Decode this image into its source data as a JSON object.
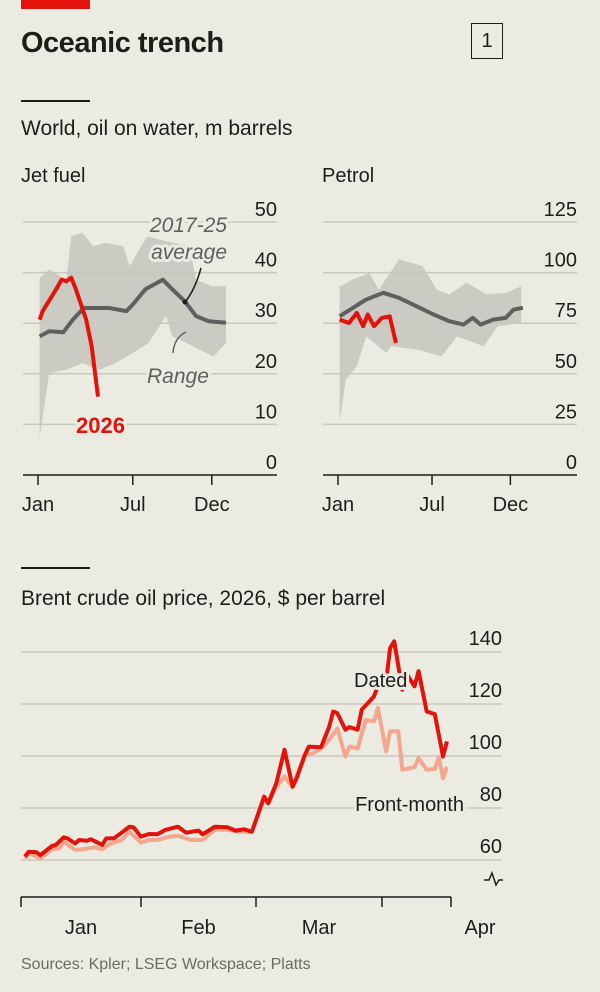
{
  "header": {
    "title": "Oceanic trench",
    "chart_number": "1"
  },
  "colors": {
    "accent": "#e3120b",
    "average": "#5f5f5f",
    "range": "#c5c4bd",
    "front_month": "#f5a68e",
    "grid": "#c9c8bf",
    "background": "#ecebe2"
  },
  "section1": {
    "subtitle": "World, oil on water, m barrels"
  },
  "section2": {
    "subtitle": "Brent crude oil price, 2026, $ per barrel"
  },
  "sources": "Sources: Kpler; LSEG Workspace; Platts",
  "chart_data": [
    {
      "type": "area",
      "title": "Jet fuel",
      "ylim": [
        0,
        50
      ],
      "yticks": [
        "0",
        "10",
        "20",
        "30",
        "40",
        "50"
      ],
      "xticks": [
        {
          "label": "Jan",
          "month": 1
        },
        {
          "label": "Jul",
          "month": 7
        },
        {
          "label": "Dec",
          "month": 12
        }
      ],
      "grid": true,
      "annotations": {
        "average": [
          "2017-25",
          "average"
        ],
        "range": "Range",
        "current": "2026"
      },
      "range": {
        "upper": [
          [
            1.1,
            39
          ],
          [
            1.7,
            40.6
          ],
          [
            2.8,
            38.6
          ],
          [
            3.1,
            47.2
          ],
          [
            3.8,
            47.9
          ],
          [
            4.5,
            45.2
          ],
          [
            5.3,
            45.9
          ],
          [
            6.4,
            45.2
          ],
          [
            6.8,
            41.3
          ],
          [
            7.9,
            47.2
          ],
          [
            9.1,
            46.2
          ],
          [
            10.6,
            45.2
          ],
          [
            11,
            38.6
          ],
          [
            12,
            37.3
          ],
          [
            12.9,
            37.3
          ]
        ],
        "lower": [
          [
            1.1,
            7.3
          ],
          [
            1.7,
            20.1
          ],
          [
            2.8,
            20.8
          ],
          [
            3.8,
            22.1
          ],
          [
            4.9,
            20.8
          ],
          [
            5.9,
            22.1
          ],
          [
            7,
            24.1
          ],
          [
            8,
            26.1
          ],
          [
            9.1,
            31.4
          ],
          [
            9.5,
            27.4
          ],
          [
            10.4,
            26.1
          ],
          [
            11.2,
            24.8
          ],
          [
            12.1,
            23.4
          ],
          [
            12.9,
            26.1
          ]
        ]
      },
      "series": [
        {
          "name": "2017-25 average",
          "values": [
            [
              1.1,
              27.4
            ],
            [
              1.7,
              28.4
            ],
            [
              2.6,
              28.2
            ],
            [
              3.2,
              30.7
            ],
            [
              3.9,
              33
            ],
            [
              4.9,
              33
            ],
            [
              5.5,
              33
            ],
            [
              6.6,
              32.4
            ],
            [
              7,
              33.7
            ],
            [
              7.8,
              36.7
            ],
            [
              8.9,
              38.6
            ],
            [
              9.5,
              36.7
            ],
            [
              10.3,
              34.3
            ],
            [
              11,
              31.4
            ],
            [
              11.8,
              30.4
            ],
            [
              12.9,
              30.1
            ]
          ]
        },
        {
          "name": "2026",
          "values": [
            [
              1.1,
              30.7
            ],
            [
              1.3,
              32.4
            ],
            [
              1.95,
              35.7
            ],
            [
              2.5,
              38.6
            ],
            [
              2.8,
              38.3
            ],
            [
              3.1,
              39
            ],
            [
              3.4,
              36.7
            ],
            [
              4.05,
              30.7
            ],
            [
              4.4,
              25.4
            ],
            [
              4.8,
              15.5
            ]
          ]
        }
      ]
    },
    {
      "type": "area",
      "title": "Petrol",
      "ylim": [
        0,
        125
      ],
      "yticks": [
        "0",
        "25",
        "50",
        "75",
        "100",
        "125"
      ],
      "xticks": [
        {
          "label": "Jan",
          "month": 1
        },
        {
          "label": "Jul",
          "month": 7
        },
        {
          "label": "Dec",
          "month": 12
        }
      ],
      "grid": true,
      "range": {
        "upper": [
          [
            1.1,
            93.3
          ],
          [
            1.96,
            96.6
          ],
          [
            3,
            99.9
          ],
          [
            3.6,
            91.6
          ],
          [
            4.9,
            106.5
          ],
          [
            6.4,
            103.2
          ],
          [
            7.3,
            91.6
          ],
          [
            8.1,
            89.2
          ],
          [
            9.2,
            95
          ],
          [
            10.5,
            89.2
          ],
          [
            11.7,
            90
          ],
          [
            12.7,
            93.3
          ]
        ],
        "lower": [
          [
            1.1,
            26.4
          ],
          [
            1.5,
            47.1
          ],
          [
            2.2,
            53.7
          ],
          [
            2.8,
            68.5
          ],
          [
            4.1,
            60.3
          ],
          [
            4.4,
            63.6
          ],
          [
            6.1,
            61.9
          ],
          [
            7.6,
            58.6
          ],
          [
            8.6,
            68.5
          ],
          [
            10.3,
            63.6
          ],
          [
            11.2,
            73.5
          ],
          [
            12.7,
            75.1
          ]
        ]
      },
      "series": [
        {
          "name": "2017-25 average",
          "values": [
            [
              1.1,
              78.4
            ],
            [
              1.96,
              82.6
            ],
            [
              2.8,
              86.7
            ],
            [
              3.9,
              90
            ],
            [
              4.9,
              87.5
            ],
            [
              6,
              83.4
            ],
            [
              7.1,
              79.3
            ],
            [
              8.1,
              76
            ],
            [
              9,
              74.3
            ],
            [
              9.6,
              77.6
            ],
            [
              10.1,
              74.3
            ],
            [
              10.9,
              76.8
            ],
            [
              11.7,
              77.6
            ],
            [
              12.2,
              81.7
            ],
            [
              12.8,
              82.6
            ]
          ]
        },
        {
          "name": "2026",
          "values": [
            [
              1.1,
              76.8
            ],
            [
              1.7,
              75.1
            ],
            [
              2.2,
              80.1
            ],
            [
              2.6,
              73.5
            ],
            [
              2.9,
              79.3
            ],
            [
              3.3,
              73.5
            ],
            [
              3.8,
              77.6
            ],
            [
              4.3,
              78.4
            ],
            [
              4.7,
              65.2
            ]
          ]
        }
      ]
    },
    {
      "type": "line",
      "title": "Brent crude oil price, 2026, $ per barrel",
      "ylim": [
        50,
        145
      ],
      "yticks": [
        "60",
        "80",
        "100",
        "120",
        "140"
      ],
      "xticks": [
        "Jan",
        "Feb",
        "Mar",
        "Apr"
      ],
      "xlim": [
        "2026-01-01",
        "2026-04-18"
      ],
      "grid": true,
      "axis_break": true,
      "series": [
        {
          "name": "Front-month",
          "values": [
            [
              "2026-01-02",
              60.6
            ],
            [
              "2026-01-03",
              62.6
            ],
            [
              "2026-01-06",
              60.6
            ],
            [
              "2026-01-09",
              64.1
            ],
            [
              "2026-01-11",
              64.5
            ],
            [
              "2026-01-12",
              67.1
            ],
            [
              "2026-01-15",
              63.9
            ],
            [
              "2026-01-17",
              64.1
            ],
            [
              "2026-01-20",
              64.9
            ],
            [
              "2026-01-22",
              64.1
            ],
            [
              "2026-01-24",
              66.2
            ],
            [
              "2026-01-27",
              67.7
            ],
            [
              "2026-01-29",
              70.9
            ],
            [
              "2026-02-01",
              66.7
            ],
            [
              "2026-02-03",
              67.7
            ],
            [
              "2026-02-05",
              67.7
            ],
            [
              "2026-02-08",
              69
            ],
            [
              "2026-02-10",
              69.3
            ],
            [
              "2026-02-13",
              67.7
            ],
            [
              "2026-02-15",
              67.7
            ],
            [
              "2026-02-16",
              67.7
            ],
            [
              "2026-02-19",
              71.6
            ],
            [
              "2026-02-22",
              71.6
            ],
            [
              "2026-02-25",
              70.9
            ],
            [
              "2026-02-28",
              70.9
            ],
            [
              "2026-03-03",
              83.7
            ],
            [
              "2026-03-04",
              81.8
            ],
            [
              "2026-03-06",
              88.2
            ],
            [
              "2026-03-08",
              92
            ],
            [
              "2026-03-10",
              88.2
            ],
            [
              "2026-03-13",
              100.4
            ],
            [
              "2026-03-15",
              101
            ],
            [
              "2026-03-17",
              102.9
            ],
            [
              "2026-03-19",
              106.2
            ],
            [
              "2026-03-21",
              110.6
            ],
            [
              "2026-03-23",
              99.8
            ],
            [
              "2026-03-24",
              103.6
            ],
            [
              "2026-03-26",
              102.9
            ],
            [
              "2026-03-28",
              113.9
            ],
            [
              "2026-03-30",
              113.3
            ],
            [
              "2026-03-31",
              118.5
            ],
            [
              "2026-04-02",
              101.8
            ],
            [
              "2026-04-03",
              109.5
            ],
            [
              "2026-04-05",
              109.5
            ],
            [
              "2026-04-06",
              94.7
            ],
            [
              "2026-04-09",
              95.7
            ],
            [
              "2026-04-10",
              99.2
            ],
            [
              "2026-04-12",
              94.7
            ],
            [
              "2026-04-14",
              95
            ],
            [
              "2026-04-15",
              99.5
            ],
            [
              "2026-04-16",
              91.4
            ],
            [
              "2026-04-17",
              95.9
            ]
          ]
        },
        {
          "name": "Dated",
          "values": [
            [
              "2026-01-02",
              61.3
            ],
            [
              "2026-01-03",
              63.2
            ],
            [
              "2026-01-05",
              63
            ],
            [
              "2026-01-06",
              61.9
            ],
            [
              "2026-01-09",
              65.4
            ],
            [
              "2026-01-10",
              65.8
            ],
            [
              "2026-01-12",
              68.7
            ],
            [
              "2026-01-13",
              68.3
            ],
            [
              "2026-01-15",
              66.4
            ],
            [
              "2026-01-16",
              67.7
            ],
            [
              "2026-01-18",
              67.4
            ],
            [
              "2026-01-19",
              68
            ],
            [
              "2026-01-22",
              65.8
            ],
            [
              "2026-01-23",
              68.3
            ],
            [
              "2026-01-25",
              68.3
            ],
            [
              "2026-01-27",
              70.5
            ],
            [
              "2026-01-29",
              72.8
            ],
            [
              "2026-01-30",
              72.6
            ],
            [
              "2026-02-01",
              69
            ],
            [
              "2026-02-03",
              70
            ],
            [
              "2026-02-05",
              69.9
            ],
            [
              "2026-02-07",
              71.6
            ],
            [
              "2026-02-10",
              72.8
            ],
            [
              "2026-02-12",
              70.5
            ],
            [
              "2026-02-15",
              71.3
            ],
            [
              "2026-02-16",
              69.9
            ],
            [
              "2026-02-19",
              72.8
            ],
            [
              "2026-02-22",
              72.6
            ],
            [
              "2026-02-24",
              71.3
            ],
            [
              "2026-02-26",
              71.8
            ],
            [
              "2026-02-28",
              70.9
            ],
            [
              "2026-03-03",
              84.4
            ],
            [
              "2026-03-04",
              81.8
            ],
            [
              "2026-03-06",
              89.5
            ],
            [
              "2026-03-08",
              102.4
            ],
            [
              "2026-03-10",
              88.2
            ],
            [
              "2026-03-11",
              91.4
            ],
            [
              "2026-03-13",
              100.4
            ],
            [
              "2026-03-14",
              103.6
            ],
            [
              "2026-03-17",
              103.4
            ],
            [
              "2026-03-19",
              111.3
            ],
            [
              "2026-03-20",
              117.1
            ],
            [
              "2026-03-21",
              116.5
            ],
            [
              "2026-03-23",
              110.1
            ],
            [
              "2026-03-24",
              111.1
            ],
            [
              "2026-03-26",
              110.1
            ],
            [
              "2026-03-27",
              117.8
            ],
            [
              "2026-03-30",
              122.9
            ],
            [
              "2026-03-31",
              127
            ],
            [
              "2026-04-02",
              128.7
            ],
            [
              "2026-04-03",
              141.5
            ],
            [
              "2026-04-04",
              144.1
            ],
            [
              "2026-04-06",
              125.5
            ],
            [
              "2026-04-07",
              131.7
            ],
            [
              "2026-04-09",
              126.8
            ],
            [
              "2026-04-10",
              132.6
            ],
            [
              "2026-04-12",
              117.1
            ],
            [
              "2026-04-14",
              116.1
            ],
            [
              "2026-04-16",
              99.8
            ],
            [
              "2026-04-17",
              105.6
            ]
          ]
        }
      ]
    }
  ]
}
